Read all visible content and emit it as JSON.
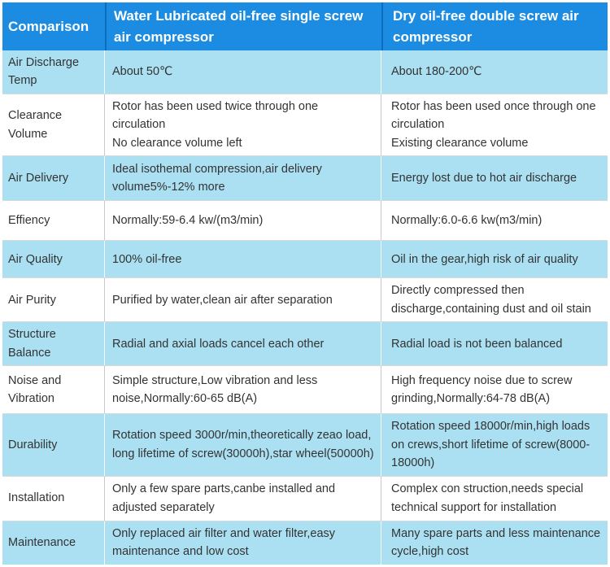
{
  "table": {
    "columns": [
      {
        "label": "Comparison"
      },
      {
        "label": "Water Lubricated oil-free single screw air compressor"
      },
      {
        "label": "Dry oil-free double screw air compressor"
      }
    ],
    "rows": [
      {
        "feature": "Air Discharge Temp",
        "water": [
          "About 50℃"
        ],
        "dry": [
          "About 180-200℃"
        ]
      },
      {
        "feature": "Clearance Volume",
        "water": [
          "Rotor has been used twice through one circulation",
          "No clearance volume left"
        ],
        "dry": [
          "Rotor has been used once through one circulation",
          "Existing clearance volume"
        ]
      },
      {
        "feature": "Air Delivery",
        "water": [
          "Ideal isothemal compression,air delivery volume5%-12% more"
        ],
        "dry": [
          "Energy lost due to hot air discharge"
        ]
      },
      {
        "feature": "Effiency",
        "water": [
          "Normally:59-6.4 kw/(m3/min)"
        ],
        "dry": [
          "Normally:6.0-6.6 kw(m3/min)"
        ]
      },
      {
        "feature": "Air Quality",
        "water": [
          "100% oil-free"
        ],
        "dry": [
          "Oil in the gear,high risk of air quality"
        ]
      },
      {
        "feature": "Air Purity",
        "water": [
          "Purified by water,clean air after separation"
        ],
        "dry": [
          "Directly compressed then discharge,containing dust and oil stain"
        ]
      },
      {
        "feature": "Structure Balance",
        "water": [
          "Radial and axial loads cancel each other"
        ],
        "dry": [
          "Radial load is not been balanced"
        ]
      },
      {
        "feature": "Noise and Vibration",
        "water": [
          "Simple structure,Low vibration and less noise,Normally:60-65 dB(A)"
        ],
        "dry": [
          "High frequency noise due to screw grinding,Normally:64-78 dB(A)"
        ]
      },
      {
        "feature": "Durability",
        "water": [
          "Rotation speed 3000r/min,theoretically zeao load, long lifetime of screw(30000h),star wheel(50000h)"
        ],
        "dry": [
          "Rotation speed 18000r/min,high loads on crews,short lifetime of screw(8000-18000h)"
        ]
      },
      {
        "feature": "Installation",
        "water": [
          "Only a few spare parts,canbe installed and adjusted separately"
        ],
        "dry": [
          "Complex con struction,needs special technical support for installation"
        ]
      },
      {
        "feature": "Maintenance",
        "water": [
          "Only replaced air filter and water filter,easy maintenance and low cost"
        ],
        "dry": [
          "Many spare parts and less maintenance cycle,high cost"
        ]
      }
    ]
  },
  "colors": {
    "header_bg": "#1b8ce2",
    "header_divider": "#0d6dbd",
    "row_alt_bg": "#abe0f2",
    "row_bg": "#ffffff",
    "header_text": "#ffffff",
    "body_text": "#333333",
    "grid_line": "#c9c9c9",
    "outer_bg": "#ffffff"
  }
}
